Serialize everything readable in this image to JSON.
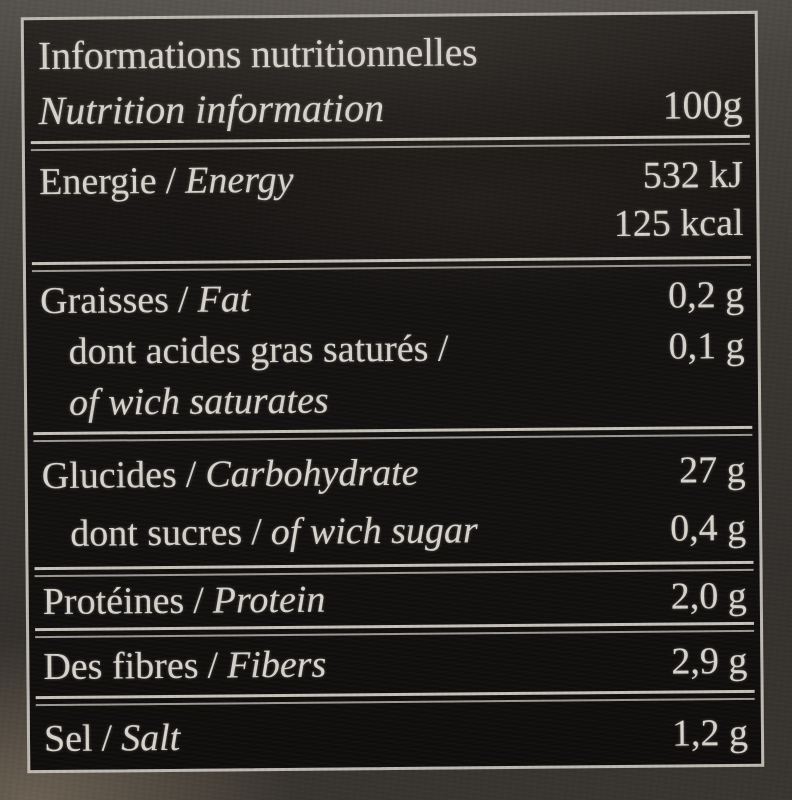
{
  "sep": "/",
  "header": {
    "title_fr": "Informations nutritionnelles",
    "title_en": "Nutrition information",
    "serving": "100g"
  },
  "rows": {
    "energy": {
      "fr": "Energie",
      "en": "Energy",
      "value_kj": "532 kJ",
      "value_kcal": "125 kcal"
    },
    "fat": {
      "fr": "Graisses",
      "en": "Fat",
      "value": "0,2 g",
      "saturates_fr": "dont acides gras saturés /",
      "saturates_en": "of wich saturates",
      "saturates_value": "0,1 g"
    },
    "carbohydrate": {
      "fr": "Glucides",
      "en": "Carbohydrate",
      "value": "27 g",
      "sugars_fr": "dont sucres",
      "sugars_en": "of wich sugar",
      "sugars_value": "0,4 g"
    },
    "protein": {
      "fr": "Protéines",
      "en": "Protein",
      "value": "2,0 g"
    },
    "fibers": {
      "fr": "Des fibres",
      "en": "Fibers",
      "value": "2,9 g"
    },
    "salt": {
      "fr": "Sel",
      "en": "Salt",
      "value": "1,2 g"
    }
  },
  "colors": {
    "label_text": "#d8d4cd",
    "table_background": "#121010",
    "border": "#bdb9b2",
    "photo_background": "#3a3632"
  }
}
